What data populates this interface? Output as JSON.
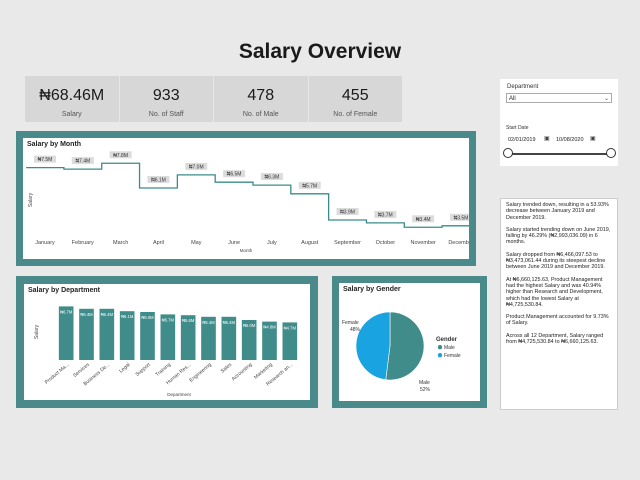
{
  "header": {
    "title": "Salary Overview"
  },
  "kpis": [
    {
      "value": "₦68.46M",
      "label": "Salary"
    },
    {
      "value": "933",
      "label": "No. of Staff"
    },
    {
      "value": "478",
      "label": "No. of Male"
    },
    {
      "value": "455",
      "label": "No. of Female"
    }
  ],
  "slicers": {
    "department": {
      "label": "Department",
      "value": "All"
    },
    "date": {
      "label": "Start Date",
      "start": "02/01/2019",
      "end": "10/08/2020",
      "range_fraction": [
        0.0,
        1.0
      ]
    }
  },
  "narrative": [
    "Salary trended down, resulting in a 53.93% decrease between January 2019 and December 2019.",
    "Salary started trending down on June 2019, falling by 46.29% (₦2,993,036.09) in 6 months.",
    "Salary dropped from ₦6,466,097.53 to ₦3,473,061.44 during its steepest decline between June 2019 and December 2019.",
    "At ₦6,660,125.63, Product Management had the highest Salary and was 40.94% higher than Research and Development, which had the lowest Salary at ₦4,725,530.84.",
    "Product Management accounted for 9.73% of Salary.",
    "Across all 12 Department, Salary ranged from ₦4,725,530.84 to ₦6,660,125.63."
  ],
  "chart_data": [
    {
      "type": "line",
      "title": "Salary by Month",
      "xlabel": "Month",
      "ylabel": "Salary",
      "line_style": "step",
      "categories": [
        "January",
        "February",
        "March",
        "April",
        "May",
        "June",
        "July",
        "August",
        "September",
        "October",
        "November",
        "December"
      ],
      "values": [
        7.5,
        7.4,
        7.8,
        6.1,
        7.0,
        6.5,
        6.3,
        5.7,
        3.9,
        3.7,
        3.4,
        3.5
      ],
      "data_labels": [
        "₦7.5M",
        "₦7.4M",
        "₦7.8M",
        "₦6.1M",
        "₦7.0M",
        "₦6.5M",
        "₦6.3M",
        "₦5.7M",
        "₦3.9M",
        "₦3.7M",
        "₦3.4M",
        "₦3.5M"
      ],
      "color": "#3a8c8c"
    },
    {
      "type": "bar",
      "title": "Salary by Department",
      "xlabel": "Department",
      "ylabel": "Salary",
      "categories": [
        "Product Ma...",
        "Services",
        "Business De...",
        "Legal",
        "Support",
        "Training",
        "Human Res...",
        "Engineering",
        "Sales",
        "Accounting",
        "Marketing",
        "Research an..."
      ],
      "values": [
        6.7,
        6.4,
        6.4,
        6.1,
        6.0,
        5.7,
        5.6,
        5.4,
        5.4,
        5.0,
        4.8,
        4.7
      ],
      "data_labels": [
        "₦6.7M",
        "₦6.4M",
        "₦6.4M",
        "₦6.1M",
        "₦6.0M",
        "₦5.7M",
        "₦5.6M",
        "₦5.4M",
        "₦5.4M",
        "₦5.0M",
        "₦4.8M",
        "₦4.7M"
      ],
      "color": "#3f8c8a"
    },
    {
      "type": "pie",
      "title": "Salary by Gender",
      "legend_title": "Gender",
      "slices": [
        {
          "name": "Male",
          "value": 52,
          "label": "Male\n52%",
          "color": "#3f8c8a"
        },
        {
          "name": "Female",
          "value": 48,
          "label": "Female\n48%",
          "color": "#19a3e0"
        }
      ]
    }
  ]
}
